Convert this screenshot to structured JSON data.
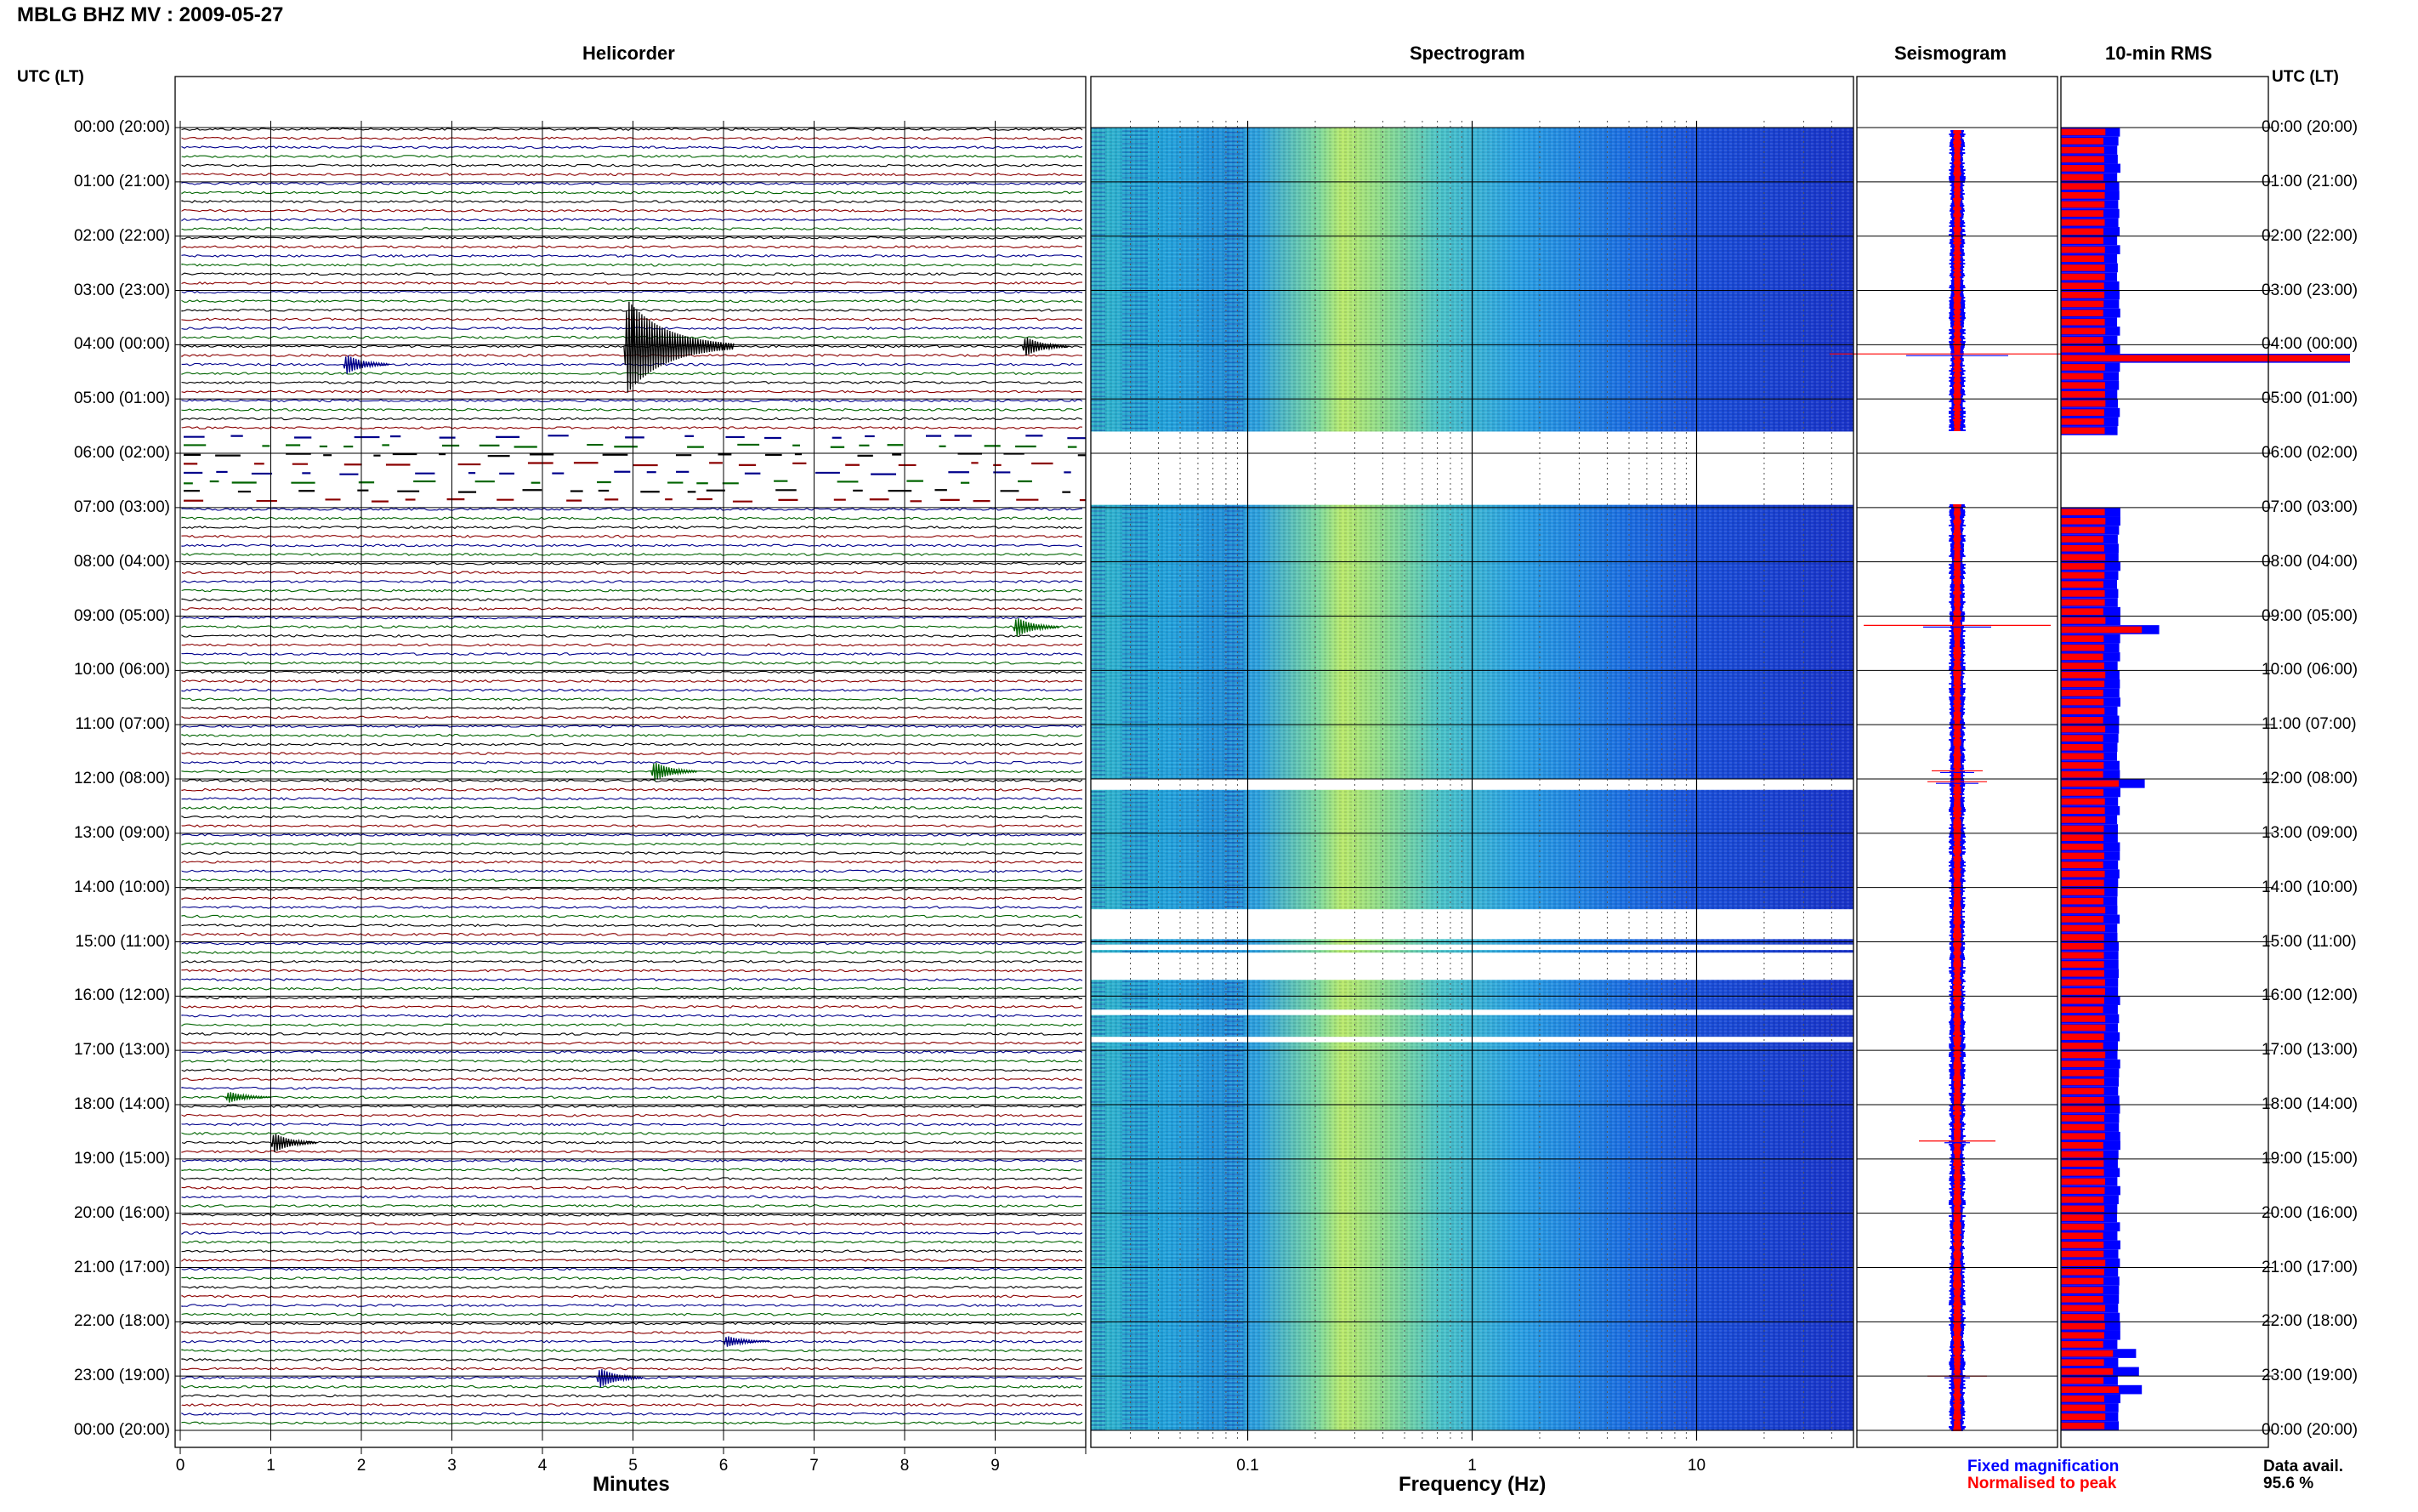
{
  "header": {
    "title": "MBLG BHZ MV : 2009-05-27",
    "utc_left": "UTC (LT)",
    "utc_right": "UTC (LT)"
  },
  "panels": {
    "helicorder": "Helicorder",
    "spectrogram": "Spectrogram",
    "seismogram": "Seismogram",
    "rms": "10-min RMS"
  },
  "axes": {
    "minutes_label": "Minutes",
    "frequency_label": "Frequency (Hz)",
    "minute_ticks": [
      "0",
      "1",
      "2",
      "3",
      "4",
      "5",
      "6",
      "7",
      "8",
      "9"
    ],
    "freq_ticks": [
      "0.1",
      "1",
      "10"
    ]
  },
  "time_labels": [
    "00:00 (20:00)",
    "01:00 (21:00)",
    "02:00 (22:00)",
    "03:00 (23:00)",
    "04:00 (00:00)",
    "05:00 (01:00)",
    "06:00 (02:00)",
    "07:00 (03:00)",
    "08:00 (04:00)",
    "09:00 (05:00)",
    "10:00 (06:00)",
    "11:00 (07:00)",
    "12:00 (08:00)",
    "13:00 (09:00)",
    "14:00 (10:00)",
    "15:00 (11:00)",
    "16:00 (12:00)",
    "17:00 (13:00)",
    "18:00 (14:00)",
    "19:00 (15:00)",
    "20:00 (16:00)",
    "21:00 (17:00)",
    "22:00 (18:00)",
    "23:00 (19:00)",
    "00:00 (20:00)"
  ],
  "legend": {
    "fixed": "Fixed magnification",
    "normalised": "Normalised to peak",
    "fixed_color": "#0000ff",
    "normalised_color": "#ff0000"
  },
  "availability": {
    "label": "Data avail.",
    "value": "95.6 %"
  },
  "colors": {
    "trace_black": "#000000",
    "trace_red": "#8b0000",
    "trace_blue": "#00008b",
    "trace_green": "#006400",
    "rms_fixed": "#0000ff",
    "rms_normalised": "#ff0000"
  },
  "chart_data": [
    {
      "type": "line",
      "title": "Helicorder",
      "xlabel": "Minutes",
      "ylabel": "UTC (LT)",
      "xlim": [
        0,
        10
      ],
      "ylim_hours": [
        0,
        24
      ],
      "row_minutes": 10,
      "rows": 144,
      "data_gaps_hours": [
        [
          5.6,
          6.95
        ]
      ],
      "events": [
        {
          "hour": 4.0,
          "minute": 4.9,
          "amplitude": "large"
        },
        {
          "hour": 4.0,
          "minute": 9.3,
          "amplitude": "medium"
        },
        {
          "hour": 4.33,
          "minute": 1.8,
          "amplitude": "medium"
        },
        {
          "hour": 9.17,
          "minute": 9.2,
          "amplitude": "medium"
        },
        {
          "hour": 11.83,
          "minute": 5.2,
          "amplitude": "medium"
        },
        {
          "hour": 17.83,
          "minute": 0.5,
          "amplitude": "small"
        },
        {
          "hour": 18.67,
          "minute": 1.0,
          "amplitude": "medium"
        },
        {
          "hour": 22.33,
          "minute": 6.0,
          "amplitude": "small"
        },
        {
          "hour": 23.0,
          "minute": 4.6,
          "amplitude": "medium"
        }
      ]
    },
    {
      "type": "heatmap",
      "title": "Spectrogram",
      "xlabel": "Frequency (Hz)",
      "x_scale": "log",
      "xlim": [
        0.02,
        50
      ],
      "ylim_hours": [
        0,
        24
      ],
      "data_gaps_hours": [
        [
          5.6,
          6.95
        ],
        [
          12.0,
          12.2
        ],
        [
          14.4,
          14.95
        ],
        [
          15.05,
          15.15
        ],
        [
          15.2,
          15.7
        ],
        [
          16.25,
          16.35
        ],
        [
          16.75,
          16.85
        ]
      ],
      "peak_band_hz": [
        0.2,
        0.5
      ]
    },
    {
      "type": "line",
      "title": "Seismogram",
      "ylim_hours": [
        0,
        24
      ],
      "series": [
        {
          "name": "Fixed magnification",
          "color": "#0000ff"
        },
        {
          "name": "Normalised to peak",
          "color": "#ff0000"
        }
      ]
    },
    {
      "type": "bar",
      "title": "10-min RMS",
      "ylim_hours": [
        0,
        24
      ],
      "row_minutes": 10,
      "series": [
        {
          "name": "Fixed magnification",
          "color": "#0000ff",
          "baseline": 1.0
        },
        {
          "name": "Normalised to peak",
          "color": "#ff0000",
          "baseline": 0.75
        }
      ],
      "peaks": [
        {
          "hour": 4.17,
          "fixed": 5.0,
          "normalised": 5.0
        },
        {
          "hour": 9.17,
          "fixed": 1.7,
          "normalised": 1.4
        },
        {
          "hour": 12.0,
          "fixed": 1.45,
          "normalised": 1.0
        },
        {
          "hour": 22.5,
          "fixed": 1.3,
          "normalised": 0.9
        },
        {
          "hour": 22.83,
          "fixed": 1.35,
          "normalised": 0.9
        },
        {
          "hour": 23.17,
          "fixed": 1.4,
          "normalised": 1.0
        }
      ]
    }
  ]
}
